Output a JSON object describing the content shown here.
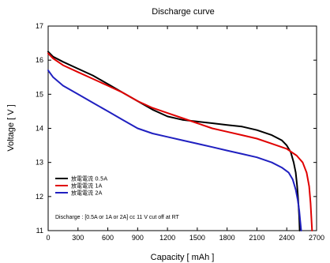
{
  "chart_data": {
    "type": "line",
    "title": "Discharge curve",
    "xlabel": "Capacity  [ mAh ]",
    "ylabel": "Voltage [ V ]",
    "xlim": [
      0,
      2700
    ],
    "ylim": [
      11,
      17
    ],
    "xticks": [
      0,
      300,
      600,
      900,
      1200,
      1500,
      1800,
      2100,
      2400,
      2700
    ],
    "yticks": [
      11,
      12,
      13,
      14,
      15,
      16,
      17
    ],
    "xtick_labels": [
      "0",
      "300",
      "600",
      "900",
      "1200",
      "1500",
      "1800",
      "2100",
      "2400",
      "2700"
    ],
    "ytick_labels": [
      "11",
      "12",
      "13",
      "14",
      "15",
      "16",
      "17"
    ],
    "grid": false,
    "legend_position": "lower-left",
    "annotation": "Discharge : [0.5A or 1A or 2A] cc 11 V cut off at RT",
    "series": [
      {
        "name": "放電電流  0.5A",
        "color": "#000000",
        "x": [
          0,
          50,
          150,
          300,
          450,
          600,
          750,
          900,
          1050,
          1200,
          1350,
          1500,
          1650,
          1800,
          1950,
          2100,
          2250,
          2350,
          2400,
          2440,
          2470,
          2490,
          2505,
          2515,
          2525,
          2530
        ],
        "y": [
          16.25,
          16.1,
          15.95,
          15.75,
          15.55,
          15.3,
          15.05,
          14.8,
          14.55,
          14.35,
          14.25,
          14.2,
          14.15,
          14.1,
          14.05,
          13.95,
          13.8,
          13.65,
          13.5,
          13.3,
          13.0,
          12.7,
          12.3,
          11.9,
          11.4,
          11.0
        ]
      },
      {
        "name": "放電電流  1A",
        "color": "#e00000",
        "x": [
          0,
          50,
          150,
          300,
          450,
          600,
          750,
          900,
          1050,
          1200,
          1350,
          1500,
          1650,
          1800,
          1950,
          2100,
          2250,
          2400,
          2500,
          2560,
          2600,
          2625,
          2640,
          2655
        ],
        "y": [
          16.2,
          16.05,
          15.85,
          15.65,
          15.45,
          15.25,
          15.05,
          14.8,
          14.6,
          14.45,
          14.3,
          14.15,
          14.0,
          13.9,
          13.8,
          13.7,
          13.55,
          13.4,
          13.2,
          13.0,
          12.7,
          12.3,
          11.8,
          11.0
        ]
      },
      {
        "name": "放電電流  2A",
        "color": "#2020c0",
        "x": [
          0,
          50,
          150,
          300,
          450,
          600,
          750,
          900,
          1050,
          1200,
          1350,
          1500,
          1650,
          1800,
          1950,
          2100,
          2250,
          2350,
          2420,
          2460,
          2490,
          2510,
          2525,
          2535,
          2545
        ],
        "y": [
          15.7,
          15.5,
          15.25,
          15.0,
          14.75,
          14.5,
          14.25,
          14.0,
          13.85,
          13.75,
          13.65,
          13.55,
          13.45,
          13.35,
          13.25,
          13.15,
          13.0,
          12.85,
          12.7,
          12.5,
          12.2,
          11.9,
          11.6,
          11.3,
          11.0
        ]
      }
    ]
  }
}
